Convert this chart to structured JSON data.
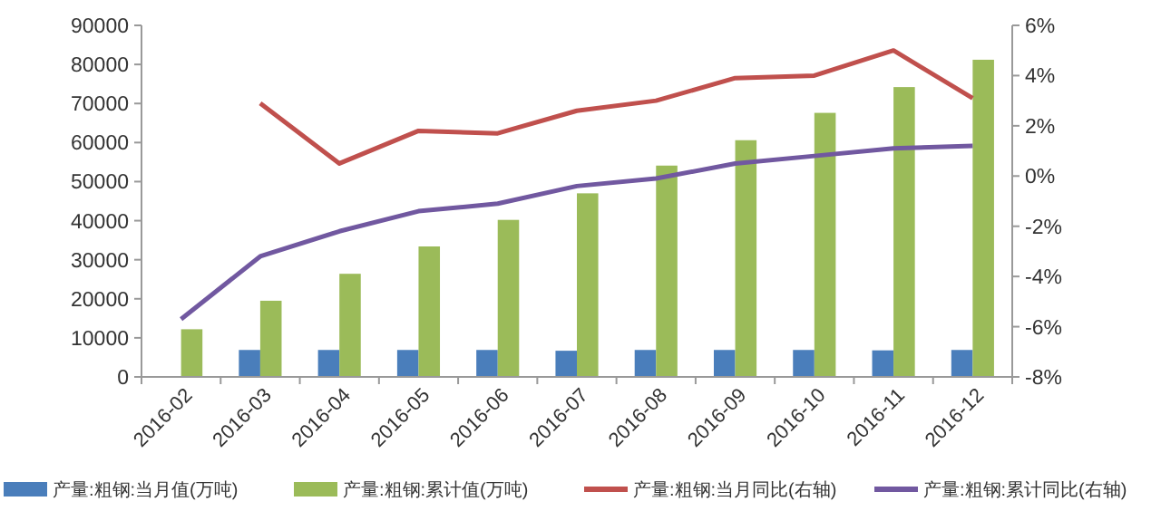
{
  "chart_data": {
    "type": "bar",
    "categories": [
      "2016-02",
      "2016-03",
      "2016-04",
      "2016-05",
      "2016-06",
      "2016-07",
      "2016-08",
      "2016-09",
      "2016-10",
      "2016-11",
      "2016-12"
    ],
    "series": [
      {
        "name": "产量:粗钢:当月值(万吨)",
        "color": "#4a7ebb",
        "values": [
          null,
          6900,
          6900,
          6900,
          6900,
          6700,
          6900,
          6900,
          6900,
          6800,
          6900
        ]
      },
      {
        "name": "产量:粗钢:累计值(万吨)",
        "color": "#9bbb59",
        "values": [
          12200,
          19500,
          26400,
          33400,
          40200,
          47000,
          54100,
          60600,
          67600,
          74200,
          81200
        ]
      },
      {
        "name": "产量:粗钢:当月同比(右轴)",
        "type": "line",
        "axis": "y2",
        "color": "#c0504d",
        "values": [
          null,
          2.9,
          0.5,
          1.8,
          1.7,
          2.6,
          3.0,
          3.9,
          4.0,
          5.0,
          3.1
        ]
      },
      {
        "name": "产量:粗钢:累计同比(右轴)",
        "type": "line",
        "axis": "y2",
        "color": "#7158a0",
        "values": [
          -5.7,
          -3.2,
          -2.2,
          -1.4,
          -1.1,
          -0.4,
          -0.1,
          0.5,
          0.8,
          1.1,
          1.2
        ]
      }
    ],
    "ylim": [
      0,
      90000
    ],
    "yticks": [
      0,
      10000,
      20000,
      30000,
      40000,
      50000,
      60000,
      70000,
      80000,
      90000
    ],
    "y2lim": [
      -8,
      6
    ],
    "y2ticks": [
      {
        "value": -8,
        "label": "-8%"
      },
      {
        "value": -6,
        "label": "-6%"
      },
      {
        "value": -4,
        "label": "-4%"
      },
      {
        "value": -2,
        "label": "-2%"
      },
      {
        "value": 0,
        "label": "0%"
      },
      {
        "value": 2,
        "label": "2%"
      },
      {
        "value": 4,
        "label": "4%"
      },
      {
        "value": 6,
        "label": "6%"
      }
    ],
    "grid": false,
    "legend": "bottom",
    "marker": "none",
    "line_style": "solid"
  }
}
